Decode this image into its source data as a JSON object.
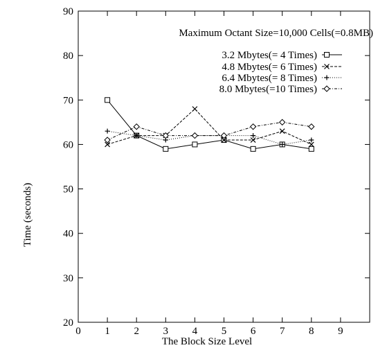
{
  "chart_data": {
    "type": "line",
    "title": "Maximum Octant Size=10,000 Cells(=0.8MB)",
    "xlabel": "The Block Size Level",
    "ylabel": "Time (seconds)",
    "xlim": [
      0,
      10
    ],
    "ylim": [
      20,
      90
    ],
    "xticks": [
      0,
      1,
      2,
      3,
      4,
      5,
      6,
      7,
      8,
      9
    ],
    "yticks": [
      20,
      30,
      40,
      50,
      60,
      70,
      80,
      90
    ],
    "grid": false,
    "legend_position": "top-right",
    "x": [
      1,
      2,
      3,
      4,
      5,
      6,
      7,
      8
    ],
    "series": [
      {
        "name": "3.2 Mbytes(= 4 Times)",
        "marker": "square",
        "dash": "solid",
        "values": [
          70,
          62,
          59,
          60,
          61,
          59,
          60,
          59
        ]
      },
      {
        "name": "4.8 Mbytes(= 6 Times)",
        "marker": "x",
        "dash": "dashed",
        "values": [
          60,
          62,
          62,
          68,
          61,
          61,
          63,
          60
        ]
      },
      {
        "name": "6.4 Mbytes(= 8 Times)",
        "marker": "plus",
        "dash": "dotted",
        "values": [
          63,
          62,
          61,
          62,
          62,
          62,
          60,
          61
        ]
      },
      {
        "name": "8.0 Mbytes(=10 Times)",
        "marker": "diamond",
        "dash": "dashdot",
        "values": [
          61,
          64,
          62,
          62,
          62,
          64,
          65,
          64
        ]
      }
    ]
  }
}
